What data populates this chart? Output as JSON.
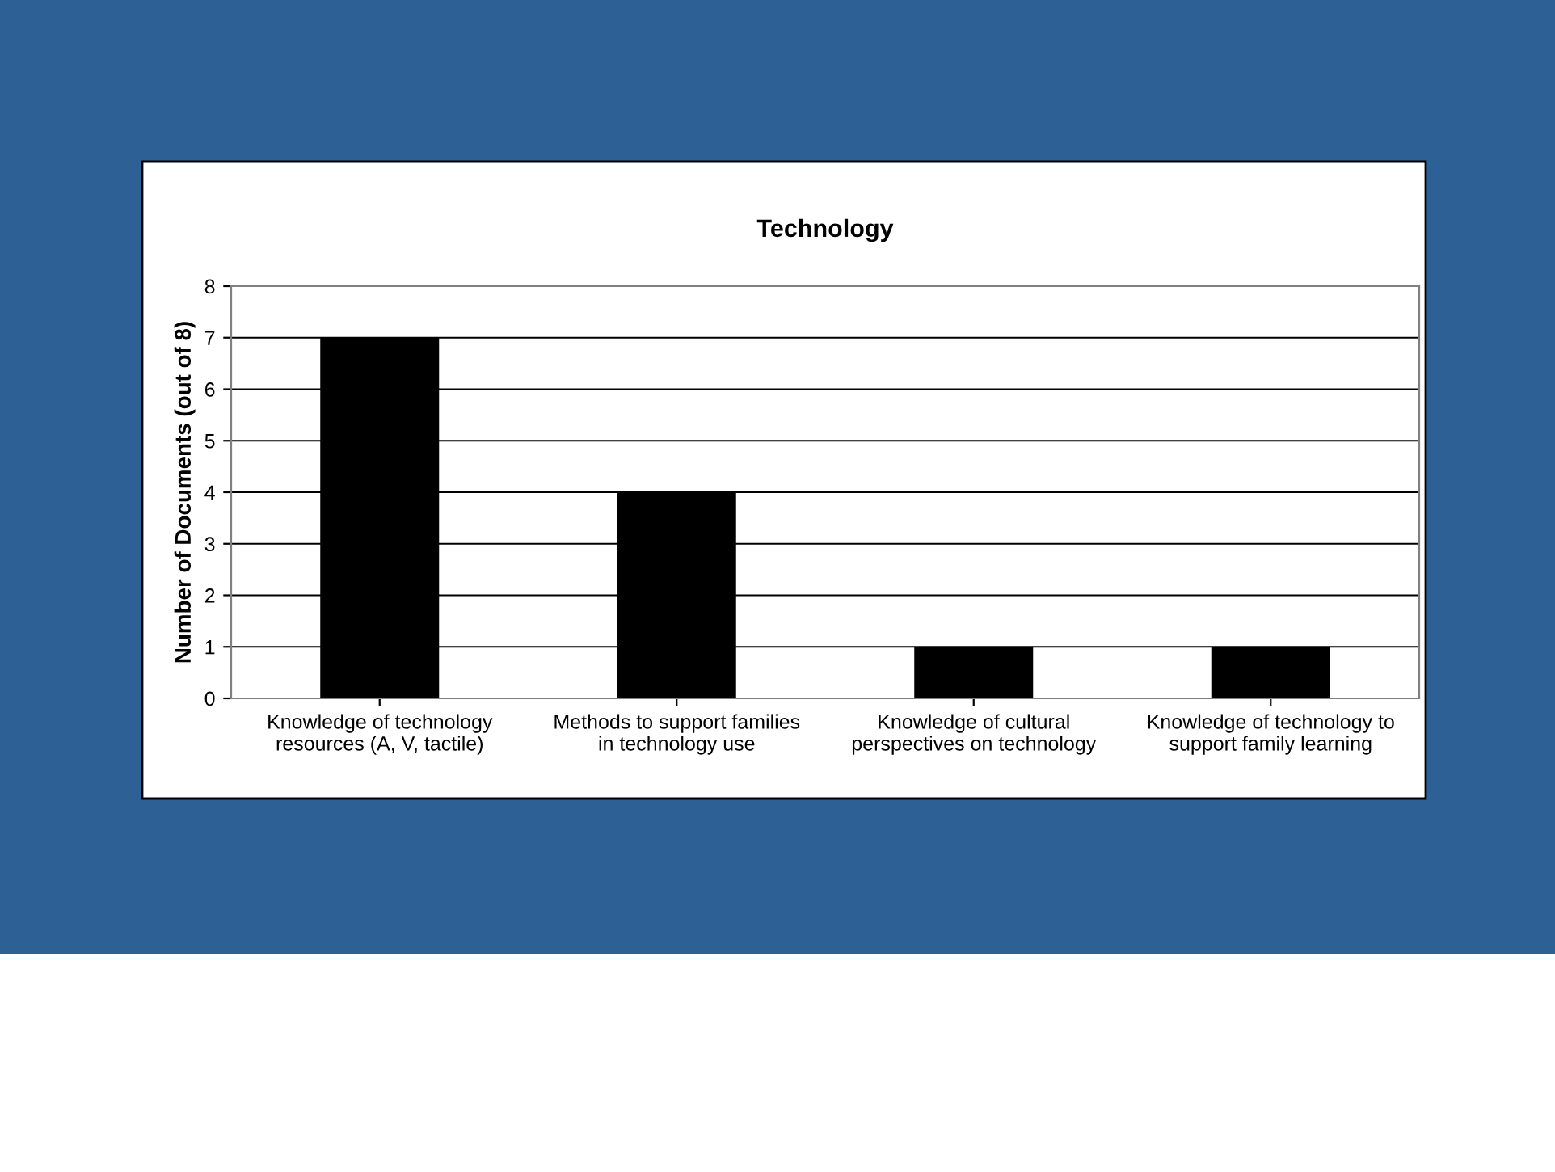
{
  "chart_data": {
    "type": "bar",
    "title": "Technology",
    "ylabel": "Number of Documents (out of 8)",
    "categories": [
      "Knowledge of technology\nresources (A, V, tactile)",
      "Methods to support families\nin technology use",
      "Knowledge of cultural\nperspectives on technology",
      "Knowledge of technology to\nsupport family learning"
    ],
    "values": [
      7,
      4,
      1,
      1
    ],
    "color": "#000000",
    "ylim": [
      0,
      8
    ],
    "yticks": [
      0,
      1,
      2,
      3,
      4,
      5,
      6,
      7,
      8
    ],
    "grid": "y",
    "legend": false
  }
}
